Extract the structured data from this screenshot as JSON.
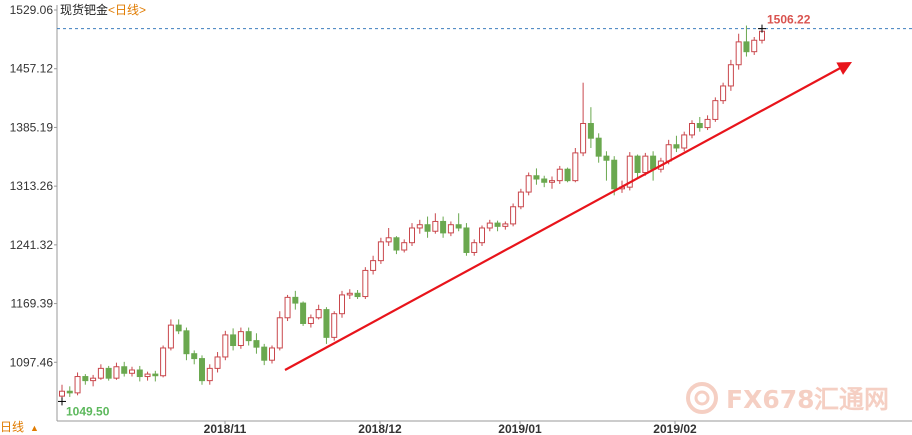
{
  "chart_data": {
    "type": "candlestick",
    "title": "现货钯金",
    "period": "日线",
    "y_ticks": [
      "1529.06",
      "1457.12",
      "1385.19",
      "1313.26",
      "1241.32",
      "1169.39",
      "1097.46"
    ],
    "x_ticks": [
      "2018/11",
      "2018/12",
      "2019/01",
      "2019/02"
    ],
    "ylim": [
      1025.53,
      1529.06
    ],
    "high_marker": "1506.22",
    "low_marker": "1049.50",
    "grid": false,
    "trend_arrow": {
      "color": "#e8141b",
      "from": [
        21,
        1090
      ],
      "to": [
        138,
        1466
      ]
    },
    "colors": {
      "up": "#c9474c",
      "down": "#6aa84f",
      "axis": "#999999",
      "dashed": "#3f7fbf"
    },
    "candles": [
      [
        1056,
        1070,
        1052,
        1062
      ],
      [
        1062,
        1068,
        1055,
        1060
      ],
      [
        1060,
        1085,
        1057,
        1080
      ],
      [
        1080,
        1083,
        1070,
        1075
      ],
      [
        1075,
        1082,
        1068,
        1078
      ],
      [
        1078,
        1095,
        1076,
        1090
      ],
      [
        1090,
        1093,
        1075,
        1078
      ],
      [
        1078,
        1097,
        1076,
        1092
      ],
      [
        1092,
        1098,
        1080,
        1084
      ],
      [
        1084,
        1092,
        1080,
        1088
      ],
      [
        1088,
        1093,
        1074,
        1080
      ],
      [
        1080,
        1086,
        1075,
        1083
      ],
      [
        1083,
        1087,
        1074,
        1081
      ],
      [
        1081,
        1118,
        1079,
        1115
      ],
      [
        1115,
        1150,
        1112,
        1143
      ],
      [
        1143,
        1150,
        1132,
        1136
      ],
      [
        1136,
        1140,
        1100,
        1108
      ],
      [
        1108,
        1112,
        1095,
        1102
      ],
      [
        1102,
        1106,
        1070,
        1075
      ],
      [
        1075,
        1095,
        1070,
        1090
      ],
      [
        1090,
        1110,
        1085,
        1104
      ],
      [
        1104,
        1136,
        1100,
        1131
      ],
      [
        1131,
        1139,
        1112,
        1118
      ],
      [
        1118,
        1140,
        1114,
        1135
      ],
      [
        1135,
        1140,
        1118,
        1124
      ],
      [
        1124,
        1133,
        1108,
        1116
      ],
      [
        1116,
        1120,
        1094,
        1100
      ],
      [
        1100,
        1118,
        1096,
        1115
      ],
      [
        1115,
        1160,
        1112,
        1152
      ],
      [
        1152,
        1180,
        1148,
        1177
      ],
      [
        1177,
        1185,
        1162,
        1170
      ],
      [
        1170,
        1172,
        1142,
        1145
      ],
      [
        1145,
        1156,
        1140,
        1152
      ],
      [
        1152,
        1168,
        1150,
        1162
      ],
      [
        1162,
        1165,
        1120,
        1128
      ],
      [
        1128,
        1160,
        1124,
        1157
      ],
      [
        1157,
        1185,
        1152,
        1180
      ],
      [
        1180,
        1187,
        1175,
        1182
      ],
      [
        1182,
        1186,
        1175,
        1178
      ],
      [
        1178,
        1214,
        1175,
        1210
      ],
      [
        1210,
        1228,
        1205,
        1222
      ],
      [
        1222,
        1250,
        1218,
        1245
      ],
      [
        1245,
        1262,
        1240,
        1250
      ],
      [
        1250,
        1252,
        1230,
        1235
      ],
      [
        1235,
        1248,
        1232,
        1244
      ],
      [
        1244,
        1268,
        1240,
        1262
      ],
      [
        1262,
        1272,
        1255,
        1266
      ],
      [
        1266,
        1276,
        1250,
        1258
      ],
      [
        1258,
        1280,
        1255,
        1270
      ],
      [
        1270,
        1276,
        1250,
        1256
      ],
      [
        1256,
        1270,
        1252,
        1266
      ],
      [
        1266,
        1280,
        1258,
        1262
      ],
      [
        1262,
        1268,
        1228,
        1232
      ],
      [
        1232,
        1248,
        1228,
        1244
      ],
      [
        1244,
        1265,
        1240,
        1262
      ],
      [
        1262,
        1272,
        1258,
        1268
      ],
      [
        1268,
        1271,
        1258,
        1264
      ],
      [
        1264,
        1270,
        1260,
        1267
      ],
      [
        1267,
        1292,
        1264,
        1288
      ],
      [
        1288,
        1310,
        1285,
        1306
      ],
      [
        1306,
        1330,
        1302,
        1326
      ],
      [
        1326,
        1335,
        1315,
        1322
      ],
      [
        1322,
        1326,
        1312,
        1318
      ],
      [
        1318,
        1325,
        1310,
        1320
      ],
      [
        1320,
        1338,
        1316,
        1334
      ],
      [
        1334,
        1336,
        1318,
        1320
      ],
      [
        1320,
        1360,
        1318,
        1354
      ],
      [
        1354,
        1440,
        1350,
        1390
      ],
      [
        1390,
        1410,
        1360,
        1372
      ],
      [
        1372,
        1378,
        1342,
        1350
      ],
      [
        1350,
        1356,
        1320,
        1345
      ],
      [
        1345,
        1350,
        1302,
        1310
      ],
      [
        1310,
        1320,
        1305,
        1312
      ],
      [
        1312,
        1355,
        1308,
        1350
      ],
      [
        1350,
        1352,
        1322,
        1330
      ],
      [
        1330,
        1354,
        1326,
        1350
      ],
      [
        1350,
        1356,
        1320,
        1334
      ],
      [
        1334,
        1348,
        1330,
        1344
      ],
      [
        1344,
        1370,
        1340,
        1364
      ],
      [
        1364,
        1375,
        1355,
        1360
      ],
      [
        1360,
        1380,
        1356,
        1376
      ],
      [
        1376,
        1394,
        1372,
        1390
      ],
      [
        1390,
        1398,
        1380,
        1385
      ],
      [
        1385,
        1400,
        1382,
        1395
      ],
      [
        1395,
        1422,
        1392,
        1418
      ],
      [
        1418,
        1440,
        1414,
        1436
      ],
      [
        1436,
        1468,
        1430,
        1462
      ],
      [
        1462,
        1500,
        1456,
        1490
      ],
      [
        1490,
        1510,
        1472,
        1478
      ],
      [
        1478,
        1496,
        1474,
        1492
      ],
      [
        1492,
        1505,
        1488,
        1503
      ]
    ]
  },
  "watermark": {
    "brand": "FX678",
    "cn": "汇通网"
  }
}
